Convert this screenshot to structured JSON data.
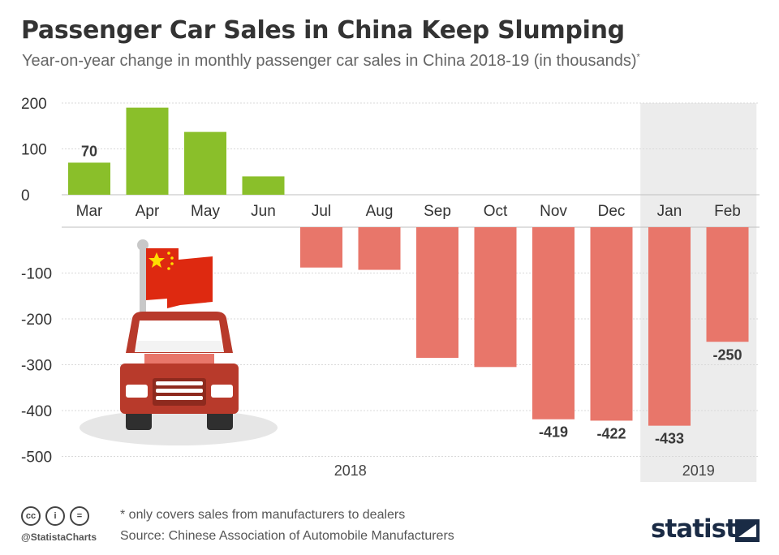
{
  "header": {
    "title": "Passenger Car Sales in China Keep Slumping",
    "subtitle": "Year-on-year change in monthly passenger car sales in China 2018-19 (in thousands)",
    "subtitle_mark": "*"
  },
  "chart_data": {
    "type": "bar",
    "categories": [
      "Mar",
      "Apr",
      "May",
      "Jun",
      "Jul",
      "Aug",
      "Sep",
      "Oct",
      "Nov",
      "Dec",
      "Jan",
      "Feb"
    ],
    "values": [
      70,
      190,
      137,
      40,
      -88,
      -93,
      -285,
      -305,
      -419,
      -422,
      -433,
      -250
    ],
    "data_labels": [
      {
        "index": 0,
        "text": "70"
      },
      {
        "index": 8,
        "text": "-419"
      },
      {
        "index": 9,
        "text": "-422"
      },
      {
        "index": 10,
        "text": "-433"
      },
      {
        "index": 11,
        "text": "-250"
      }
    ],
    "ylim": [
      -500,
      200
    ],
    "positive_ticks": [
      "200",
      "100",
      "0"
    ],
    "positive_tick_values": [
      200,
      100,
      0
    ],
    "negative_ticks": [
      "-100",
      "-200",
      "-300",
      "-400",
      "-500"
    ],
    "negative_tick_values": [
      -100,
      -200,
      -300,
      -400,
      -500
    ],
    "year_groups": [
      {
        "label": "2018",
        "first": 0,
        "last": 9,
        "shaded": false
      },
      {
        "label": "2019",
        "first": 10,
        "last": 11,
        "shaded": true
      }
    ],
    "colors": {
      "positive": "#8abf2a",
      "negative": "#e8766a",
      "shade": "#ececec",
      "grid": "#d9d9d9"
    }
  },
  "illustration": {
    "icon": "car-with-china-flag-icon"
  },
  "footer": {
    "note": "* only covers sales from manufacturers to dealers",
    "source": "Source: Chinese Association of Automobile Manufacturers",
    "handle": "@StatistaCharts",
    "license_icons": [
      "cc",
      "by",
      "nd"
    ],
    "license_glyphs": [
      "cc",
      "i",
      "="
    ],
    "brand": "statista"
  }
}
